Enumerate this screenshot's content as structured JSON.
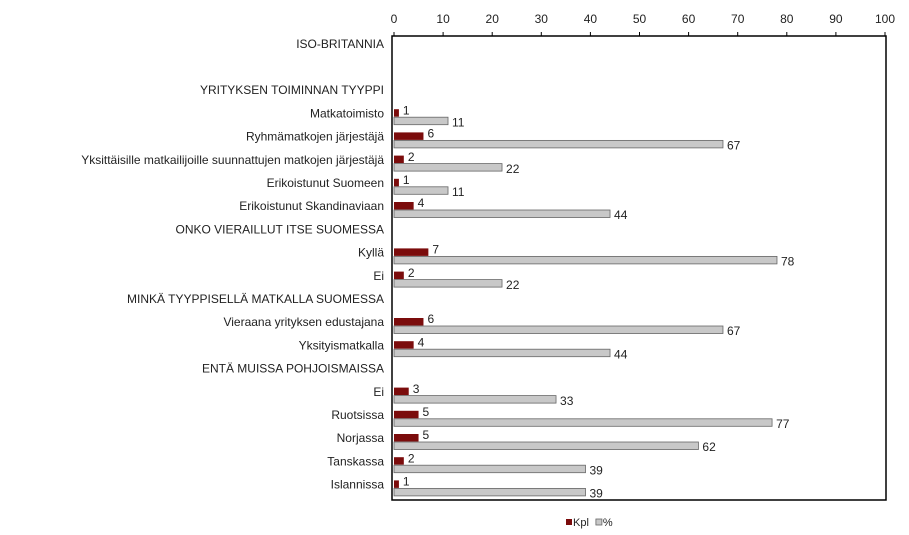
{
  "chart_data": {
    "type": "hbar",
    "categories": [
      "ISO-BRITANNIA",
      null,
      "YRITYKSEN TOIMINNAN TYYPPI",
      "Matkatoimisto",
      "Ryhmämatkojen järjestäjä",
      "Yksittäisille matkailijoille suunnattujen matkojen järjestäjä",
      "Erikoistunut Suomeen",
      "Erikoistunut Skandinaviaan",
      "ONKO VIERAILLUT ITSE SUOMESSA",
      "Kyllä",
      "Ei",
      "MINKÄ TYYPPISELLÄ MATKALLA SUOMESSA",
      "Vieraana yrityksen edustajana",
      "Yksityismatkalla",
      "ENTÄ MUISSA POHJOISMAISSA",
      "Ei",
      "Ruotsissa",
      "Norjassa",
      "Tanskassa",
      "Islannissa"
    ],
    "series": [
      {
        "name": "Kpl",
        "color": "#7b0c0c",
        "values": [
          null,
          null,
          null,
          1,
          6,
          2,
          1,
          4,
          null,
          7,
          2,
          null,
          6,
          4,
          null,
          3,
          5,
          5,
          2,
          1
        ]
      },
      {
        "name": "%",
        "color": "#c8c8c8",
        "values": [
          null,
          null,
          null,
          11,
          67,
          22,
          11,
          44,
          null,
          78,
          22,
          null,
          67,
          44,
          null,
          33,
          77,
          62,
          39,
          39
        ]
      }
    ],
    "xlim": [
      0,
      100
    ],
    "xticks": [
      0,
      10,
      20,
      30,
      40,
      50,
      60,
      70,
      80,
      90,
      100
    ],
    "grid": false,
    "legend": "bottom"
  }
}
